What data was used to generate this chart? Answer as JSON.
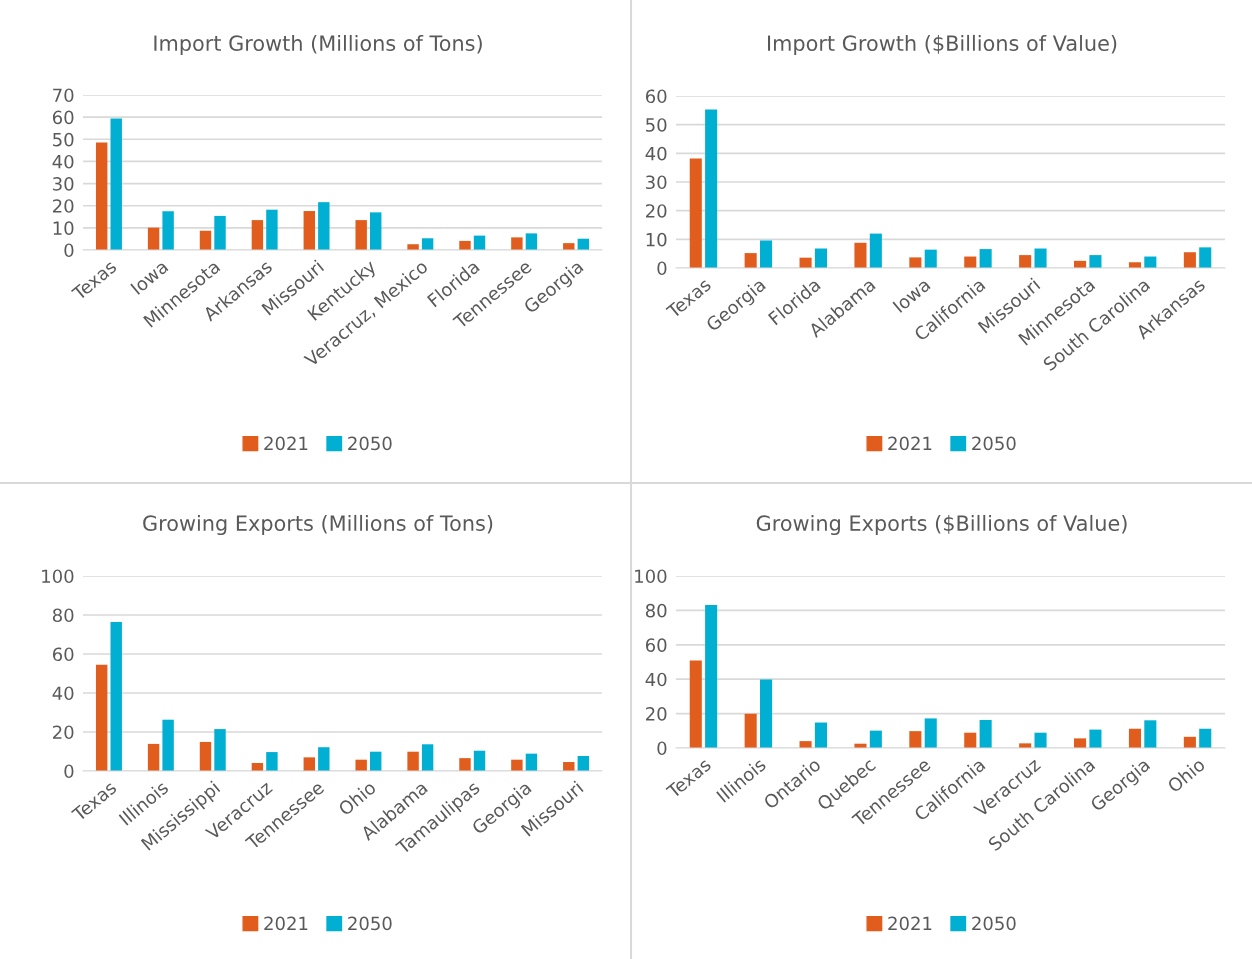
{
  "chart_data": [
    {
      "type": "bar",
      "title": "Import Growth (Millions of Tons)",
      "categories": [
        "Texas",
        "Iowa",
        "Minnesota",
        "Arkansas",
        "Missouri",
        "Kentucky",
        "Veracruz, Mexico",
        "Florida",
        "Tennessee",
        "Georgia"
      ],
      "series": [
        {
          "name": "2021",
          "color": "#e05d1d",
          "values": [
            48.5,
            10.1,
            8.7,
            13.5,
            17.6,
            13.5,
            2.6,
            4.1,
            5.7,
            3.1
          ]
        },
        {
          "name": "2050",
          "color": "#00afd1",
          "values": [
            59.4,
            17.5,
            15.4,
            18.2,
            21.6,
            17,
            5.3,
            6.5,
            7.5,
            5.1
          ]
        }
      ],
      "ylim": [
        0,
        70
      ],
      "yticks": [
        0,
        10,
        20,
        30,
        40,
        50,
        60,
        70
      ],
      "grid": "y",
      "legend": "bottom"
    },
    {
      "type": "bar",
      "title": "Import Growth ($Billions of Value)",
      "categories": [
        "Texas",
        "Georgia",
        "Florida",
        "Alabama",
        "Iowa",
        "California",
        "Missouri",
        "Minnesota",
        "South Carolina",
        "Arkansas"
      ],
      "series": [
        {
          "name": "2021",
          "color": "#e05d1d",
          "values": [
            38.2,
            5.2,
            3.6,
            8.8,
            3.7,
            4,
            4.5,
            2.5,
            2,
            5.5
          ]
        },
        {
          "name": "2050",
          "color": "#00afd1",
          "values": [
            55.3,
            9.6,
            6.8,
            12,
            6.4,
            6.6,
            6.8,
            4.5,
            4,
            7.2
          ]
        }
      ],
      "ylim": [
        0,
        60
      ],
      "yticks": [
        0,
        10,
        20,
        30,
        40,
        50,
        60
      ],
      "grid": "y",
      "legend": "bottom"
    },
    {
      "type": "bar",
      "title": "Growing Exports (Millions of Tons)",
      "categories": [
        "Texas",
        "Illinois",
        "Mississippi",
        "Veracruz",
        "Tennessee",
        "Ohio",
        "Alabama",
        "Tamaulipas",
        "Georgia",
        "Missouri"
      ],
      "series": [
        {
          "name": "2021",
          "color": "#e05d1d",
          "values": [
            54.5,
            13.9,
            14.9,
            4.1,
            7,
            5.8,
            9.9,
            6.6,
            5.8,
            4.6
          ]
        },
        {
          "name": "2050",
          "color": "#00afd1",
          "values": [
            76.4,
            26.3,
            21.5,
            9.7,
            12.2,
            9.9,
            13.7,
            10.4,
            8.9,
            7.7
          ]
        }
      ],
      "ylim": [
        0,
        100
      ],
      "yticks": [
        0,
        20,
        40,
        60,
        80,
        100
      ],
      "grid": "y",
      "legend": "bottom"
    },
    {
      "type": "bar",
      "title": "Growing Exports ($Billions of Value)",
      "categories": [
        "Texas",
        "Illinois",
        "Ontario",
        "Quebec",
        "Tennessee",
        "California",
        "Veracruz",
        "South Carolina",
        "Georgia",
        "Ohio"
      ],
      "series": [
        {
          "name": "2021",
          "color": "#e05d1d",
          "values": [
            50.8,
            19.9,
            4,
            2.5,
            9.8,
            8.9,
            2.7,
            5.6,
            11.2,
            6.5
          ]
        },
        {
          "name": "2050",
          "color": "#00afd1",
          "values": [
            83.2,
            39.8,
            14.8,
            10.1,
            17.2,
            16.3,
            8.9,
            10.7,
            16.1,
            11.2
          ]
        }
      ],
      "ylim": [
        0,
        100
      ],
      "yticks": [
        0,
        20,
        40,
        60,
        80,
        100
      ],
      "grid": "y",
      "legend": "bottom"
    }
  ]
}
